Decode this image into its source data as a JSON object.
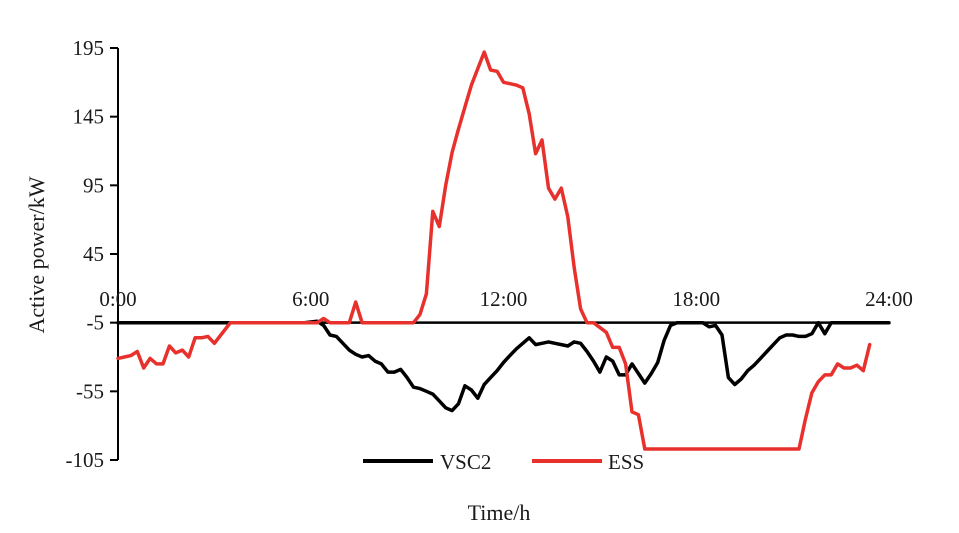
{
  "chart_data": {
    "type": "line",
    "title": "",
    "xlabel": "Time/h",
    "ylabel": "Active power/kW",
    "xlim": [
      0,
      24
    ],
    "ylim": [
      -105,
      195
    ],
    "x_ticks": [
      {
        "value": 0,
        "label": "0:00"
      },
      {
        "value": 6,
        "label": "6:00"
      },
      {
        "value": 12,
        "label": "12:00"
      },
      {
        "value": 18,
        "label": "18:00"
      },
      {
        "value": 24,
        "label": "24:00"
      }
    ],
    "y_ticks": [
      {
        "value": 195,
        "label": "195"
      },
      {
        "value": 145,
        "label": "145"
      },
      {
        "value": 95,
        "label": "95"
      },
      {
        "value": 45,
        "label": "45"
      },
      {
        "value": -5,
        "label": "-5"
      },
      {
        "value": -55,
        "label": "-55"
      },
      {
        "value": -105,
        "label": "-105"
      }
    ],
    "legend_position": "bottom",
    "grid": false,
    "series": [
      {
        "name": "VSC2",
        "color": "#000000",
        "points": [
          [
            0,
            -5
          ],
          [
            5.8,
            -5
          ],
          [
            6.2,
            -4
          ],
          [
            6.4,
            -7
          ],
          [
            6.6,
            -14
          ],
          [
            6.8,
            -15
          ],
          [
            7.0,
            -20
          ],
          [
            7.2,
            -25
          ],
          [
            7.4,
            -28
          ],
          [
            7.6,
            -30
          ],
          [
            7.8,
            -29
          ],
          [
            8.0,
            -33
          ],
          [
            8.2,
            -35
          ],
          [
            8.4,
            -41
          ],
          [
            8.6,
            -41
          ],
          [
            8.8,
            -39
          ],
          [
            9.0,
            -45
          ],
          [
            9.2,
            -52
          ],
          [
            9.4,
            -53
          ],
          [
            9.6,
            -55
          ],
          [
            9.8,
            -57
          ],
          [
            10.0,
            -62
          ],
          [
            10.2,
            -67
          ],
          [
            10.4,
            -69
          ],
          [
            10.6,
            -64
          ],
          [
            10.8,
            -51
          ],
          [
            11.0,
            -54
          ],
          [
            11.2,
            -60
          ],
          [
            11.4,
            -50
          ],
          [
            11.6,
            -45
          ],
          [
            11.8,
            -40
          ],
          [
            12.0,
            -34
          ],
          [
            12.2,
            -29
          ],
          [
            12.4,
            -24
          ],
          [
            12.6,
            -20
          ],
          [
            12.8,
            -16
          ],
          [
            13.0,
            -21
          ],
          [
            13.2,
            -20
          ],
          [
            13.4,
            -19
          ],
          [
            13.6,
            -20
          ],
          [
            13.8,
            -21
          ],
          [
            14.0,
            -22
          ],
          [
            14.2,
            -19
          ],
          [
            14.4,
            -20
          ],
          [
            14.6,
            -26
          ],
          [
            14.8,
            -33
          ],
          [
            15.0,
            -41
          ],
          [
            15.2,
            -30
          ],
          [
            15.4,
            -33
          ],
          [
            15.6,
            -43
          ],
          [
            15.8,
            -43
          ],
          [
            16.0,
            -35
          ],
          [
            16.2,
            -42
          ],
          [
            16.4,
            -49
          ],
          [
            16.6,
            -42
          ],
          [
            16.8,
            -34
          ],
          [
            17.0,
            -18
          ],
          [
            17.2,
            -7
          ],
          [
            17.4,
            -5
          ],
          [
            17.6,
            -5
          ],
          [
            17.8,
            -5
          ],
          [
            18.0,
            -5
          ],
          [
            18.2,
            -5
          ],
          [
            18.4,
            -8
          ],
          [
            18.6,
            -7
          ],
          [
            18.8,
            -14
          ],
          [
            19.0,
            -45
          ],
          [
            19.2,
            -50
          ],
          [
            19.4,
            -46
          ],
          [
            19.6,
            -40
          ],
          [
            19.8,
            -36
          ],
          [
            20.0,
            -31
          ],
          [
            20.2,
            -26
          ],
          [
            20.4,
            -21
          ],
          [
            20.6,
            -16
          ],
          [
            20.8,
            -14
          ],
          [
            21.0,
            -14
          ],
          [
            21.2,
            -15
          ],
          [
            21.4,
            -15
          ],
          [
            21.6,
            -13
          ],
          [
            21.8,
            -5
          ],
          [
            22.0,
            -13
          ],
          [
            22.2,
            -5
          ],
          [
            23.0,
            -5
          ],
          [
            24.0,
            -5
          ]
        ]
      },
      {
        "name": "ESS",
        "color": "#e8312c",
        "points": [
          [
            0,
            -31
          ],
          [
            0.4,
            -29
          ],
          [
            0.6,
            -26
          ],
          [
            0.8,
            -38
          ],
          [
            1.0,
            -31
          ],
          [
            1.2,
            -35
          ],
          [
            1.4,
            -35
          ],
          [
            1.6,
            -22
          ],
          [
            1.8,
            -27
          ],
          [
            2.0,
            -25
          ],
          [
            2.2,
            -30
          ],
          [
            2.4,
            -16
          ],
          [
            2.6,
            -16
          ],
          [
            2.8,
            -15
          ],
          [
            3.0,
            -20
          ],
          [
            3.2,
            -14
          ],
          [
            3.5,
            -5
          ],
          [
            4.0,
            -5
          ],
          [
            5.0,
            -5
          ],
          [
            6.0,
            -5
          ],
          [
            6.2,
            -5
          ],
          [
            6.4,
            -2
          ],
          [
            6.6,
            -5
          ],
          [
            7.0,
            -5
          ],
          [
            7.2,
            -5
          ],
          [
            7.4,
            10
          ],
          [
            7.6,
            -5
          ],
          [
            8.0,
            -5
          ],
          [
            8.6,
            -5
          ],
          [
            9.0,
            -5
          ],
          [
            9.2,
            -5
          ],
          [
            9.4,
            1
          ],
          [
            9.6,
            16
          ],
          [
            9.8,
            76
          ],
          [
            10.0,
            65
          ],
          [
            10.2,
            95
          ],
          [
            10.4,
            119
          ],
          [
            10.6,
            136
          ],
          [
            10.8,
            152
          ],
          [
            11.0,
            168
          ],
          [
            11.2,
            180
          ],
          [
            11.4,
            192
          ],
          [
            11.6,
            179
          ],
          [
            11.8,
            178
          ],
          [
            12.0,
            170
          ],
          [
            12.2,
            169
          ],
          [
            12.4,
            168
          ],
          [
            12.6,
            166
          ],
          [
            12.8,
            147
          ],
          [
            13.0,
            118
          ],
          [
            13.2,
            128
          ],
          [
            13.4,
            93
          ],
          [
            13.6,
            85
          ],
          [
            13.8,
            93
          ],
          [
            14.0,
            72
          ],
          [
            14.2,
            35
          ],
          [
            14.4,
            5
          ],
          [
            14.6,
            -5
          ],
          [
            14.8,
            -5
          ],
          [
            15.2,
            -12
          ],
          [
            15.4,
            -23
          ],
          [
            15.6,
            -23
          ],
          [
            15.8,
            -35
          ],
          [
            16.0,
            -70
          ],
          [
            16.2,
            -72
          ],
          [
            16.4,
            -97
          ],
          [
            17.0,
            -97
          ],
          [
            18.0,
            -97
          ],
          [
            19.0,
            -97
          ],
          [
            20.0,
            -97
          ],
          [
            21.0,
            -97
          ],
          [
            21.2,
            -97
          ],
          [
            21.4,
            -75
          ],
          [
            21.6,
            -56
          ],
          [
            21.8,
            -48
          ],
          [
            22.0,
            -43
          ],
          [
            22.2,
            -43
          ],
          [
            22.4,
            -35
          ],
          [
            22.6,
            -38
          ],
          [
            22.8,
            -38
          ],
          [
            23.0,
            -36
          ],
          [
            23.2,
            -40
          ],
          [
            23.4,
            -21
          ]
        ]
      }
    ]
  }
}
